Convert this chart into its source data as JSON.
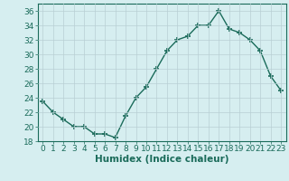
{
  "x": [
    0,
    1,
    2,
    3,
    4,
    5,
    6,
    7,
    8,
    9,
    10,
    11,
    12,
    13,
    14,
    15,
    16,
    17,
    18,
    19,
    20,
    21,
    22,
    23
  ],
  "y": [
    23.5,
    22,
    21,
    20,
    20,
    19,
    19,
    18.5,
    21.5,
    24,
    25.5,
    28,
    30.5,
    32,
    32.5,
    34,
    34,
    36,
    33.5,
    33,
    32,
    30.5,
    27,
    25
  ],
  "line_color": "#1a6b5a",
  "marker": "+",
  "marker_size": 5,
  "bg_color": "#d6eef0",
  "grid_color": "#b8cfd4",
  "xlabel": "Humidex (Indice chaleur)",
  "ylabel": "",
  "xlim": [
    -0.5,
    23.5
  ],
  "ylim": [
    18,
    37
  ],
  "yticks": [
    18,
    20,
    22,
    24,
    26,
    28,
    30,
    32,
    34,
    36
  ],
  "xticks": [
    0,
    1,
    2,
    3,
    4,
    5,
    6,
    7,
    8,
    9,
    10,
    11,
    12,
    13,
    14,
    15,
    16,
    17,
    18,
    19,
    20,
    21,
    22,
    23
  ],
  "xlabel_fontsize": 7.5,
  "tick_fontsize": 6.5,
  "linewidth": 1.0,
  "marker_linewidth": 1.2
}
